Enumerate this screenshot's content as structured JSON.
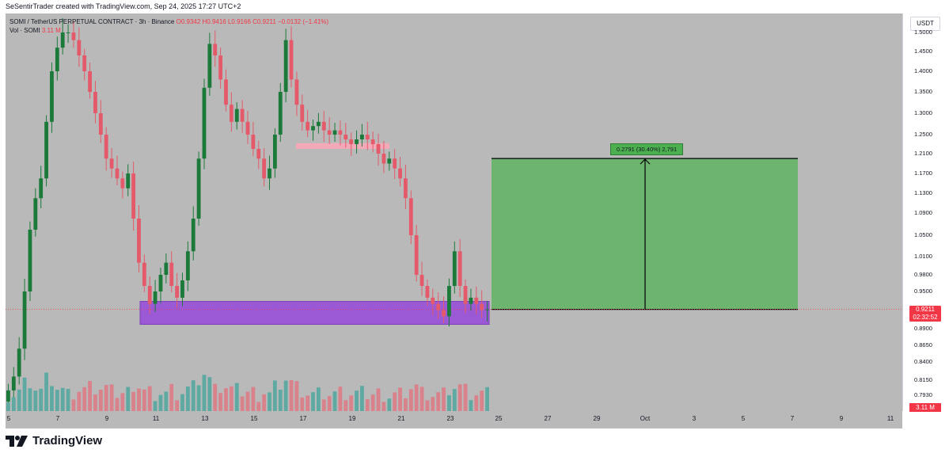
{
  "header": {
    "credit": "SeSentirTrader created with TradingView.com, Sep 24, 2025 17:27 UTC+2"
  },
  "legend": {
    "symbol": "SOMI / TetherUS PERPETUAL CONTRACT · 3h · Binance",
    "ohlc": "O0.9342 H0.9416 L0.9166 C0.9211 −0.0132 (−1.41%)",
    "volume_label": "Vol · SOMI",
    "volume_value": "3.11 M"
  },
  "currency": "USDT",
  "price_tag": {
    "price": "0.9211",
    "countdown": "02:32:52"
  },
  "volume_tag": "3.11 M",
  "measure_label": "0.2791 (30.40%) 2,791",
  "logo_text": "TradingView",
  "colors": {
    "background": "#b9b9b9",
    "up": "#1b7a3a",
    "down": "#e45a6a",
    "vol_up": "#5eaaa3",
    "vol_down": "#d9828c",
    "support_zone": "#9b59d6",
    "resistance_zone": "#f4a9b8",
    "target_box": "#6db56e",
    "price_line": "#f23645"
  },
  "chart_data": {
    "type": "candlestick",
    "title": "SOMI / TetherUS PERPETUAL CONTRACT · 3h · Binance",
    "y_ticks": [
      "1.5000",
      "1.4500",
      "1.4000",
      "1.3500",
      "1.3000",
      "1.2500",
      "1.2100",
      "1.1700",
      "1.1300",
      "1.0900",
      "1.0500",
      "1.0100",
      "0.9800",
      "0.9500",
      "0.8900",
      "0.8650",
      "0.8400",
      "0.8150",
      "0.7930"
    ],
    "ylim": [
      0.78,
      1.51
    ],
    "x_ticks": [
      "5",
      "7",
      "9",
      "11",
      "13",
      "15",
      "17",
      "19",
      "21",
      "23",
      "25",
      "27",
      "29",
      "Oct",
      "3",
      "5",
      "7",
      "9",
      "11"
    ],
    "last_price": 0.9211,
    "series": [
      {
        "name": "SOMI",
        "close_approx": [
          0.8,
          0.82,
          0.86,
          0.95,
          1.06,
          1.12,
          1.16,
          1.28,
          1.4,
          1.46,
          1.5,
          1.5,
          1.48,
          1.44,
          1.4,
          1.35,
          1.3,
          1.25,
          1.2,
          1.18,
          1.16,
          1.14,
          1.17,
          1.08,
          1.0,
          0.96,
          0.93,
          0.95,
          0.98,
          1.0,
          0.96,
          0.94,
          0.97,
          1.02,
          1.08,
          1.2,
          1.36,
          1.47,
          1.44,
          1.38,
          1.32,
          1.28,
          1.31,
          1.28,
          1.25,
          1.22,
          1.2,
          1.16,
          1.18,
          1.25,
          1.35,
          1.48,
          1.38,
          1.32,
          1.28,
          1.26,
          1.27,
          1.28,
          1.26,
          1.25,
          1.26,
          1.25,
          1.24,
          1.23,
          1.24,
          1.25,
          1.24,
          1.23,
          1.21,
          1.19,
          1.2,
          1.18,
          1.16,
          1.12,
          1.05,
          0.98,
          0.96,
          0.94,
          0.93,
          0.92,
          0.91,
          0.96,
          1.02,
          0.96,
          0.93,
          0.94,
          0.93,
          0.92,
          0.9211
        ]
      }
    ],
    "zones": [
      {
        "kind": "support",
        "from": 0.897,
        "to": 0.934
      },
      {
        "kind": "resistance",
        "from": 1.22,
        "to": 1.232
      }
    ],
    "measure": {
      "from": 0.9211,
      "to": 1.2002,
      "change": 0.2791,
      "change_pct": 30.4
    }
  }
}
